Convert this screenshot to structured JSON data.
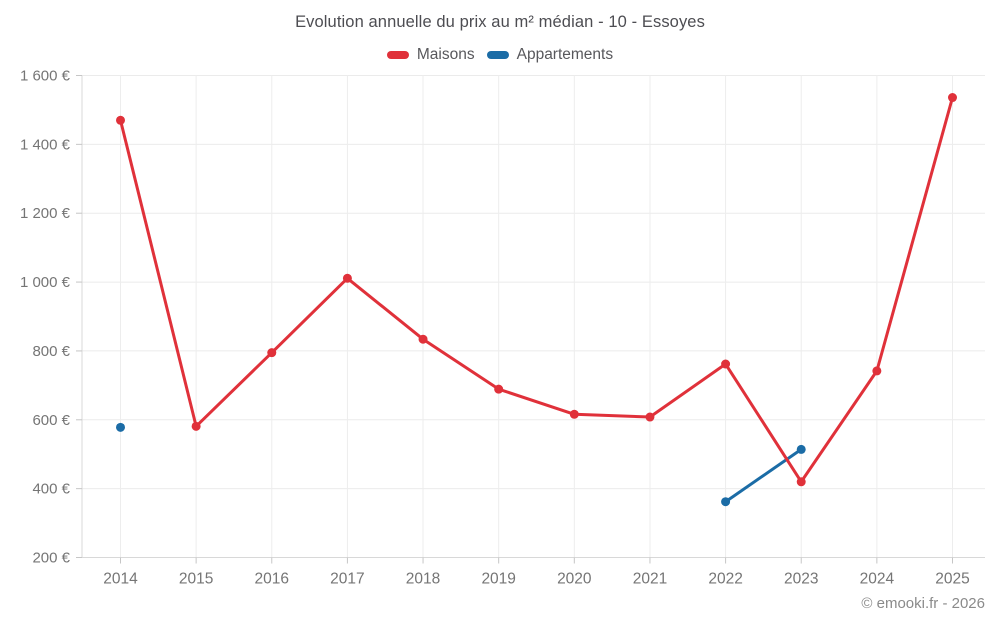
{
  "header": {
    "title": "Evolution annuelle du prix au m² médian - 10 - Essoyes"
  },
  "legend": {
    "items": [
      {
        "label": "Maisons",
        "color": "#e0313a"
      },
      {
        "label": "Appartements",
        "color": "#1b6ca6"
      }
    ]
  },
  "footer": {
    "credit": "© emooki.fr - 2026"
  },
  "chart_data": {
    "type": "line",
    "title": "Evolution annuelle du prix au m² médian - 10 - Essoyes",
    "xlabel": "",
    "ylabel": "",
    "categories": [
      "2014",
      "2015",
      "2016",
      "2017",
      "2018",
      "2019",
      "2020",
      "2021",
      "2022",
      "2023",
      "2024",
      "2025"
    ],
    "series": [
      {
        "name": "Maisons",
        "color": "#e0313a",
        "values": [
          1470,
          581,
          795,
          1011,
          834,
          689,
          616,
          608,
          762,
          420,
          742,
          1536
        ]
      },
      {
        "name": "Appartements",
        "color": "#1b6ca6",
        "values": [
          578,
          null,
          null,
          null,
          null,
          null,
          null,
          null,
          362,
          514,
          null,
          null
        ]
      }
    ],
    "ylim": [
      200,
      1600
    ],
    "yticks": [
      200,
      400,
      600,
      800,
      1000,
      1200,
      1400,
      1600
    ],
    "ytick_labels": [
      "200 €",
      "400 €",
      "600 €",
      "800 €",
      "1 000 €",
      "1 200 €",
      "1 400 €",
      "1 600 €"
    ],
    "currency_suffix": "€",
    "grid": true,
    "legend_position": "top"
  }
}
